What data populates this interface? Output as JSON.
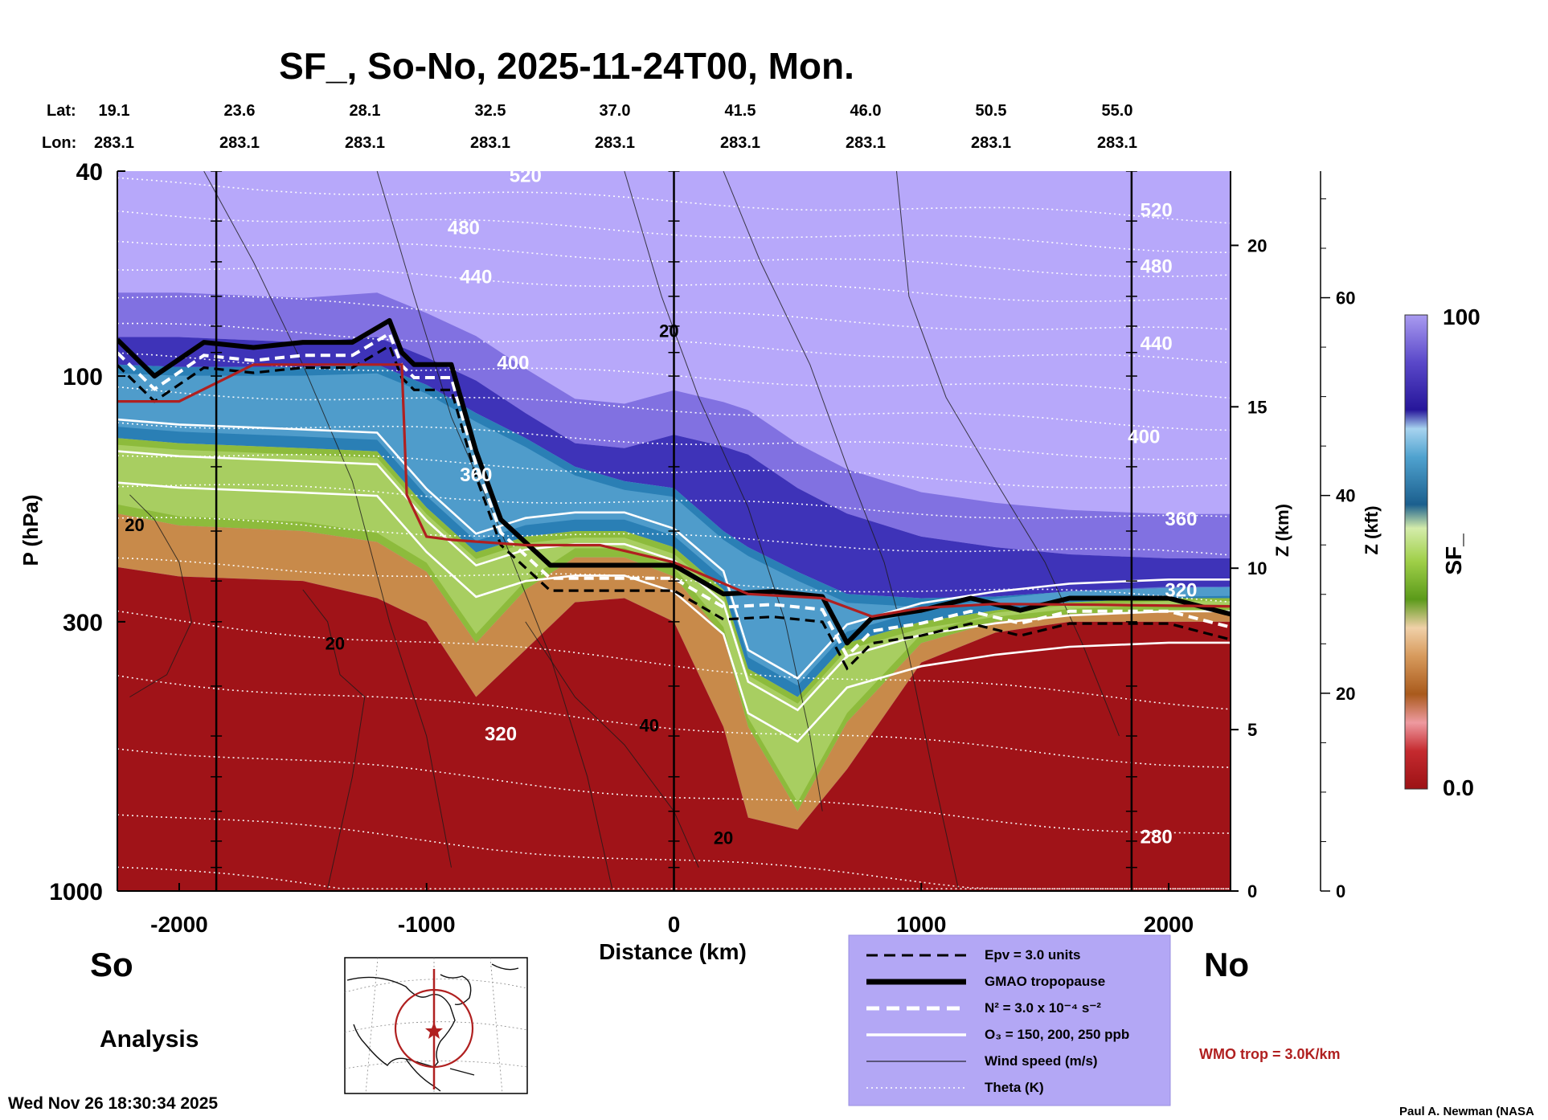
{
  "title": "SF_, So-No, 2025-11-24T00, Mon.",
  "lat_label": "Lat:",
  "lon_label": "Lon:",
  "lats": [
    "19.1",
    "23.6",
    "28.1",
    "32.5",
    "37.0",
    "41.5",
    "46.0",
    "50.5",
    "55.0"
  ],
  "lons": [
    "283.1",
    "283.1",
    "283.1",
    "283.1",
    "283.1",
    "283.1",
    "283.1",
    "283.1",
    "283.1"
  ],
  "left_label": "So",
  "right_label": "No",
  "analysis_label": "Analysis",
  "timestamp": "Wed Nov 26 18:30:34 2025",
  "credit": "Paul A. Newman (NASA",
  "wmo_label": "WMO trop = 3.0K/km",
  "colorbar": {
    "label": "SF_",
    "max_label": "100",
    "min_label": "0.0"
  },
  "colors": {
    "wmo": "#b02020",
    "legend_bg": "#b3a7f5",
    "plot_bg": "#b7a8fa",
    "band_dark": "#3e33b8",
    "band_blue": "#2a7fb5",
    "band_green": "#8dbb3c",
    "band_tan": "#c88a4a",
    "band_red": "#a01318"
  },
  "legend": [
    {
      "label": "Epv = 3.0 units",
      "style": "dash-black"
    },
    {
      "label": "GMAO tropopause",
      "style": "thick-black"
    },
    {
      "label": "N² = 3.0 x 10⁻⁴ s⁻²",
      "style": "dash-white"
    },
    {
      "label": "O₃ = 150, 200, 250 ppb",
      "style": "solid-white"
    },
    {
      "label": "Wind speed (m/s)",
      "style": "thin-black"
    },
    {
      "label": "Theta (K)",
      "style": "dotted-white"
    }
  ],
  "chart_data": {
    "type": "heatmap",
    "title": "SF_, So-No, 2025-11-24T00, Mon.",
    "xlabel": "Distance (km)",
    "ylabel": "P (hPa)",
    "y2label": "Z (km)",
    "y3label": "Z (kft)",
    "xlim": [
      -2250,
      2250
    ],
    "ylim": [
      1000,
      40
    ],
    "yscale": "log",
    "x_ticks": [
      -2000,
      -1000,
      0,
      1000,
      2000
    ],
    "x_tick_labels": [
      "-2000",
      "-1000",
      "0",
      "1000",
      "2000"
    ],
    "p_ticks": [
      40,
      100,
      300,
      1000
    ],
    "p_tick_labels": [
      "40",
      "100",
      "300",
      "1000"
    ],
    "z_km_ticks": [
      0,
      5,
      10,
      15,
      20
    ],
    "z_km_tick_labels": [
      "0",
      "5",
      "10",
      "15",
      "20"
    ],
    "z_kft_ticks": [
      0,
      20,
      40,
      60
    ],
    "z_kft_tick_labels": [
      "0",
      "20",
      "40",
      "60"
    ],
    "vertical_lines_km": [
      -1850,
      0,
      1850
    ],
    "colorbar_range": [
      0.0,
      100
    ],
    "theta_labels": [
      {
        "text": "520",
        "x": -600,
        "p": 42
      },
      {
        "text": "480",
        "x": -850,
        "p": 53
      },
      {
        "text": "440",
        "x": -800,
        "p": 66
      },
      {
        "text": "400",
        "x": -650,
        "p": 97
      },
      {
        "text": "360",
        "x": -800,
        "p": 160
      },
      {
        "text": "320",
        "x": -700,
        "p": 510
      },
      {
        "text": "520",
        "x": 1950,
        "p": 49
      },
      {
        "text": "480",
        "x": 1950,
        "p": 63
      },
      {
        "text": "440",
        "x": 1950,
        "p": 89
      },
      {
        "text": "400",
        "x": 1900,
        "p": 135
      },
      {
        "text": "360",
        "x": 2050,
        "p": 195
      },
      {
        "text": "320",
        "x": 2050,
        "p": 268
      },
      {
        "text": "280",
        "x": 1950,
        "p": 808
      }
    ],
    "wind_labels": [
      {
        "text": "20",
        "x": -20,
        "p": 84
      },
      {
        "text": "20",
        "x": -2180,
        "p": 200
      },
      {
        "text": "20",
        "x": -1370,
        "p": 340
      },
      {
        "text": "40",
        "x": -100,
        "p": 490
      },
      {
        "text": "20",
        "x": 200,
        "p": 810
      }
    ],
    "sf_boundaries": {
      "x": [
        -2250,
        -2000,
        -1500,
        -1200,
        -1000,
        -800,
        -600,
        -400,
        -200,
        0,
        200,
        300,
        500,
        700,
        1000,
        1300,
        1600,
        2000,
        2250
      ],
      "p_top_dark": [
        84,
        84,
        86,
        84,
        92,
        102,
        118,
        135,
        138,
        130,
        137,
        142,
        165,
        185,
        205,
        215,
        222,
        226,
        226
      ],
      "p_dark_blue": [
        95,
        96,
        96,
        95,
        104,
        118,
        132,
        150,
        160,
        165,
        200,
        215,
        240,
        265,
        270,
        268,
        262,
        258,
        257
      ],
      "p_blue_green": [
        132,
        135,
        138,
        140,
        180,
        220,
        205,
        200,
        200,
        215,
        260,
        370,
        420,
        330,
        300,
        285,
        275,
        270,
        270
      ],
      "p_green_tan": [
        185,
        195,
        200,
        210,
        240,
        330,
        260,
        225,
        225,
        245,
        320,
        480,
        700,
        470,
        330,
        300,
        290,
        285,
        285
      ],
      "p_tan_red": [
        235,
        245,
        250,
        270,
        300,
        420,
        340,
        275,
        270,
        300,
        480,
        720,
        760,
        580,
        360,
        315,
        300,
        300,
        300
      ]
    },
    "gmao_tropopause": {
      "x": [
        -2250,
        -2100,
        -1900,
        -1700,
        -1500,
        -1300,
        -1150,
        -1100,
        -1050,
        -900,
        -800,
        -700,
        -500,
        -300,
        -100,
        0,
        200,
        400,
        600,
        700,
        800,
        1000,
        1200,
        1400,
        1600,
        2000,
        2250
      ],
      "p": [
        85,
        100,
        86,
        88,
        86,
        86,
        78,
        90,
        95,
        95,
        140,
        190,
        233,
        233,
        233,
        233,
        265,
        262,
        268,
        330,
        295,
        285,
        270,
        285,
        270,
        270,
        290
      ]
    },
    "wmo_tropopause": {
      "x": [
        -2250,
        -2000,
        -1700,
        -1300,
        -1100,
        -1080,
        -1000,
        -900,
        -600,
        -300,
        0,
        300,
        600,
        800,
        1000,
        1300,
        1700,
        2250
      ],
      "p": [
        112,
        112,
        95,
        95,
        95,
        170,
        205,
        208,
        213,
        213,
        230,
        265,
        270,
        293,
        282,
        277,
        278,
        280
      ]
    }
  }
}
